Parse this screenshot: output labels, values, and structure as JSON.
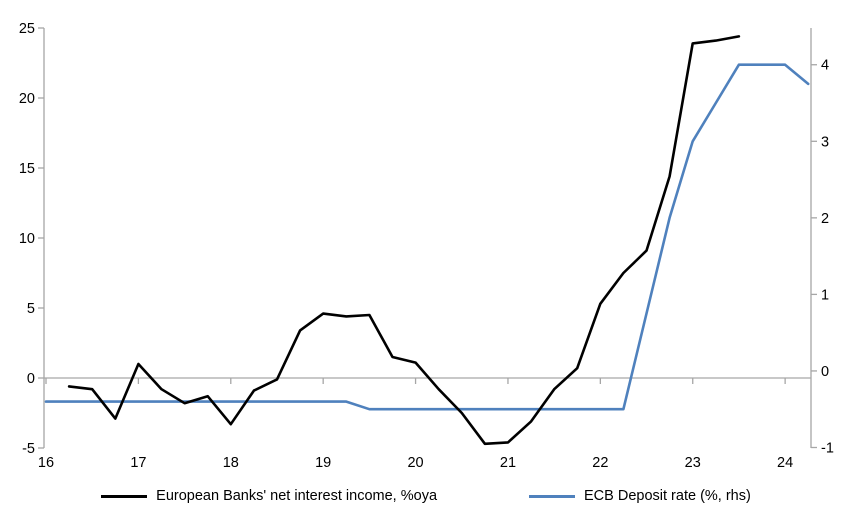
{
  "chart_data": {
    "type": "line",
    "title": "",
    "x_axis": {
      "range": [
        16,
        24.28
      ],
      "ticks": [
        16,
        17,
        18,
        19,
        20,
        21,
        22,
        23,
        24
      ],
      "labels": [
        "16",
        "17",
        "18",
        "19",
        "20",
        "21",
        "22",
        "23",
        "24"
      ]
    },
    "left_axis": {
      "range": [
        -5,
        25
      ],
      "ticks": [
        -5,
        0,
        5,
        10,
        15,
        20,
        25
      ],
      "labels": [
        "-5",
        "0",
        "5",
        "10",
        "15",
        "20",
        "25"
      ]
    },
    "right_axis": {
      "range": [
        -1,
        4.48
      ],
      "ticks": [
        -1,
        0,
        1,
        2,
        3,
        4
      ],
      "labels": [
        "-1",
        "0",
        "1",
        "2",
        "3",
        "4"
      ]
    },
    "grid": "zero-line-only",
    "legend_position": "bottom-center",
    "series": [
      {
        "name": "European Banks' net interest income, %oya",
        "axis": "left",
        "color": "#000000",
        "x": [
          16.25,
          16.5,
          16.75,
          17.0,
          17.25,
          17.5,
          17.75,
          18.0,
          18.25,
          18.5,
          18.75,
          19.0,
          19.25,
          19.5,
          19.75,
          20.0,
          20.25,
          20.5,
          20.75,
          21.0,
          21.25,
          21.5,
          21.75,
          22.0,
          22.25,
          22.5,
          22.75,
          23.0,
          23.25,
          23.5
        ],
        "values": [
          -0.6,
          -0.8,
          -2.9,
          1.0,
          -0.8,
          -1.8,
          -1.3,
          -3.3,
          -0.9,
          -0.1,
          3.4,
          4.6,
          4.4,
          4.5,
          1.5,
          1.1,
          -0.8,
          -2.5,
          -4.7,
          -4.6,
          -3.1,
          -0.8,
          0.7,
          5.3,
          7.5,
          9.1,
          14.4,
          23.9,
          24.1,
          24.4
        ]
      },
      {
        "name": "ECB Deposit rate (%, rhs)",
        "axis": "right",
        "color": "#4f81bd",
        "x": [
          16.0,
          16.25,
          16.5,
          16.75,
          17.0,
          17.25,
          17.5,
          17.75,
          18.0,
          18.25,
          18.5,
          18.75,
          19.0,
          19.25,
          19.5,
          19.75,
          20.0,
          20.25,
          20.5,
          20.75,
          21.0,
          21.25,
          21.5,
          21.75,
          22.0,
          22.25,
          22.5,
          22.75,
          23.0,
          23.25,
          23.5,
          23.75,
          24.0,
          24.25
        ],
        "values": [
          -0.4,
          -0.4,
          -0.4,
          -0.4,
          -0.4,
          -0.4,
          -0.4,
          -0.4,
          -0.4,
          -0.4,
          -0.4,
          -0.4,
          -0.4,
          -0.4,
          -0.5,
          -0.5,
          -0.5,
          -0.5,
          -0.5,
          -0.5,
          -0.5,
          -0.5,
          -0.5,
          -0.5,
          -0.5,
          -0.5,
          0.75,
          2.0,
          3.0,
          3.5,
          4.0,
          4.0,
          4.0,
          3.75
        ]
      }
    ]
  },
  "colors": {
    "nii_line": "#000000",
    "deposit_line": "#4f81bd",
    "axis_gray": "#a6a6a6",
    "background": "#ffffff"
  }
}
